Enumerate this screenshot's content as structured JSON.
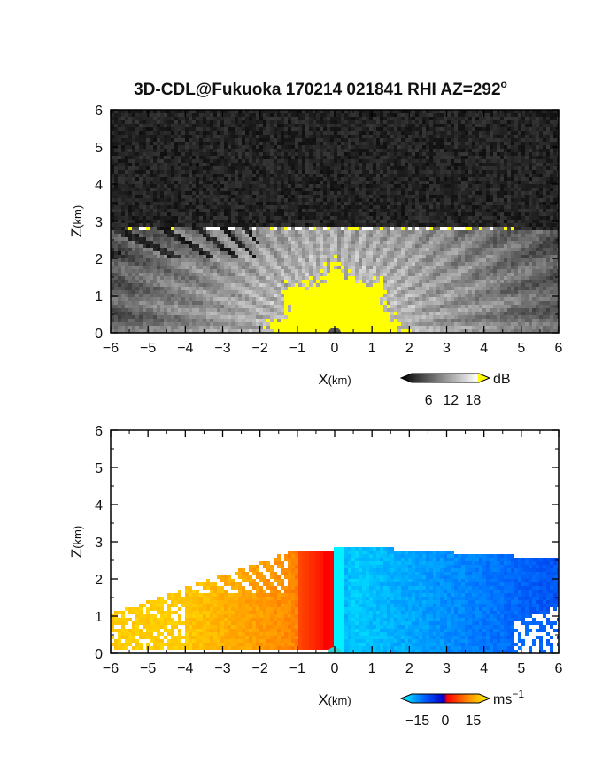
{
  "title": "3D-CDL@Fukuoka 170214 021841 RHI AZ=292",
  "title_suffix": "o",
  "chart_data": [
    {
      "type": "heatmap",
      "name": "",
      "xlabel": "X",
      "xlabel_unit": "(km)",
      "ylabel": "Z",
      "ylabel_unit": "(km)",
      "xlim": [
        -6,
        6
      ],
      "ylim": [
        0,
        6
      ],
      "xticks": [
        -6,
        -5,
        -4,
        -3,
        -2,
        -1,
        0,
        1,
        2,
        3,
        4,
        5,
        6
      ],
      "yticks": [
        0,
        1,
        2,
        3,
        4,
        5,
        6
      ],
      "colorbar": {
        "unit": "dB",
        "ticks": [
          6,
          12,
          18
        ],
        "range": [
          0,
          21
        ],
        "colors": [
          "#000000",
          "#ffffff",
          "#ffff00"
        ]
      },
      "field_top_km": 2.85,
      "saturated_color": "#ffff00"
    },
    {
      "type": "heatmap",
      "name": "",
      "xlabel": "X",
      "xlabel_unit": "(km)",
      "ylabel": "Z",
      "ylabel_unit": "(km)",
      "xlim": [
        -6,
        6
      ],
      "ylim": [
        0,
        6
      ],
      "xticks": [
        -6,
        -5,
        -4,
        -3,
        -2,
        -1,
        0,
        1,
        2,
        3,
        4,
        5,
        6
      ],
      "yticks": [
        0,
        1,
        2,
        3,
        4,
        5,
        6
      ],
      "colorbar": {
        "unit": "ms",
        "unit_sup": "−1",
        "ticks": [
          -15,
          0,
          15
        ],
        "tick_labels": [
          "−15",
          "0",
          "15"
        ],
        "range": [
          -21,
          21
        ],
        "colors": [
          "#00ffff",
          "#0044ff",
          "#0000cc",
          "#ff0000",
          "#ff8800",
          "#ffff00"
        ]
      },
      "field_top_km": 2.9
    }
  ]
}
